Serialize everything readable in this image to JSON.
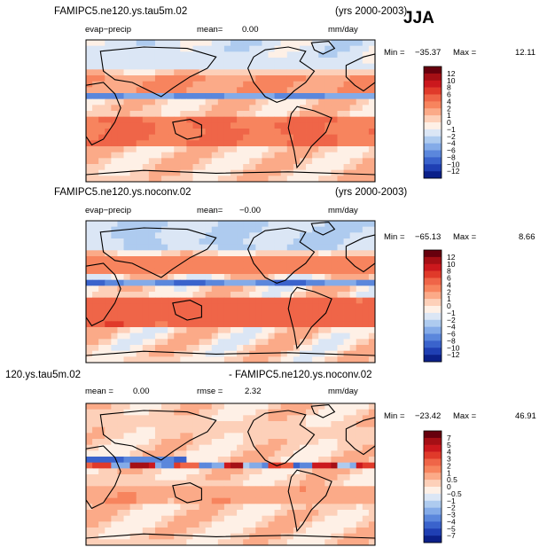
{
  "season": "JJA",
  "chart_data": [
    {
      "type": "heatmap",
      "title": "FAMIPC5.ne120.ys.tau5m.02",
      "years": "(yrs 2000-2003)",
      "variable": "evap−precip",
      "mean_label": "mean=",
      "mean": "0.00",
      "units": "mm/day",
      "min_label": "Min =",
      "min": "−35.37",
      "max_label": "Max =",
      "max": "12.11",
      "colorbar_labels": [
        "12",
        "10",
        "8",
        "6",
        "4",
        "2",
        "1",
        "0",
        "−1",
        "−2",
        "−4",
        "−6",
        "−8",
        "−10",
        "−12"
      ],
      "colorbar_colors": [
        "#67000d",
        "#a50f15",
        "#cb181d",
        "#e03a2a",
        "#ef6548",
        "#f7845e",
        "#fbaa88",
        "#fdd0b9",
        "#fef0e6",
        "#dbe6f5",
        "#aecbef",
        "#84abe8",
        "#5b87dc",
        "#3a63cc",
        "#1f3fb3",
        "#0b2089"
      ]
    },
    {
      "type": "heatmap",
      "title": "FAMIPC5.ne120.ys.noconv.02",
      "years": "(yrs 2000-2003)",
      "variable": "evap−precip",
      "mean_label": "mean=",
      "mean": "−0.00",
      "units": "mm/day",
      "min_label": "Min =",
      "min": "−65.13",
      "max_label": "Max =",
      "max": "8.66",
      "colorbar_labels": [
        "12",
        "10",
        "8",
        "6",
        "4",
        "2",
        "1",
        "0",
        "−1",
        "−2",
        "−4",
        "−6",
        "−8",
        "−10",
        "−12"
      ],
      "colorbar_colors": [
        "#67000d",
        "#a50f15",
        "#cb181d",
        "#e03a2a",
        "#ef6548",
        "#f7845e",
        "#fbaa88",
        "#fdd0b9",
        "#fef0e6",
        "#dbe6f5",
        "#aecbef",
        "#84abe8",
        "#5b87dc",
        "#3a63cc",
        "#1f3fb3",
        "#0b2089"
      ]
    },
    {
      "type": "heatmap",
      "title_left": "120.ys.tau5m.02",
      "title_right": "- FAMIPC5.ne120.ys.noconv.02",
      "mean_label": "mean =",
      "mean": "0.00",
      "rmse_label": "rmse =",
      "rmse": "2.32",
      "units": "mm/day",
      "min_label": "Min =",
      "min": "−23.42",
      "max_label": "Max =",
      "max": "46.91",
      "colorbar_labels": [
        "7",
        "5",
        "4",
        "3",
        "2",
        "1",
        "0.5",
        "0",
        "−0.5",
        "−1",
        "−2",
        "−3",
        "−4",
        "−5",
        "−7"
      ],
      "colorbar_colors": [
        "#67000d",
        "#a50f15",
        "#cb181d",
        "#e03a2a",
        "#ef6548",
        "#f7845e",
        "#fbaa88",
        "#fdd0b9",
        "#fef0e6",
        "#dbe6f5",
        "#aecbef",
        "#84abe8",
        "#5b87dc",
        "#3a63cc",
        "#1f3fb3",
        "#0b2089"
      ]
    }
  ]
}
